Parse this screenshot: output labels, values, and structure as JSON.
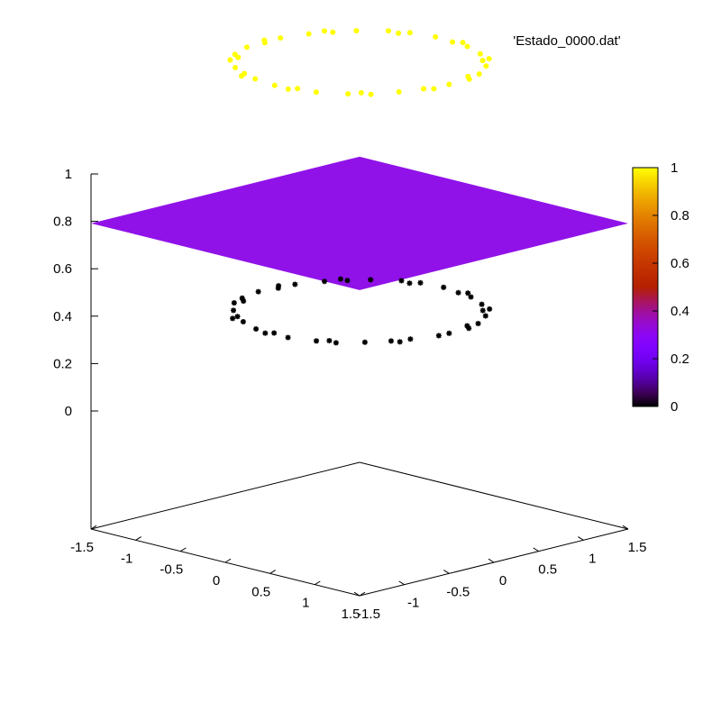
{
  "chart_data": {
    "type": "scatter",
    "subtype": "3d-splot",
    "title": "",
    "legend": {
      "position": "top-right",
      "entries": [
        {
          "label": "'Estado_0000.dat'",
          "color": "#FFFF00"
        }
      ]
    },
    "axes": {
      "x": {
        "range": [
          -1.5,
          1.5
        ],
        "ticks": [
          -1.5,
          -1,
          -0.5,
          0,
          0.5,
          1,
          1.5
        ],
        "tick_labels": [
          "-1.5",
          "-1",
          "-0.5",
          "0",
          "0.5",
          "1",
          "1.5"
        ]
      },
      "y": {
        "range": [
          -1.5,
          1.5
        ],
        "ticks": [
          -1.5,
          -1,
          -0.5,
          0,
          0.5,
          1,
          1.5
        ],
        "tick_labels": [
          "-1.5",
          "-1",
          "-0.5",
          "0",
          "0.5",
          "1",
          "1.5"
        ]
      },
      "z": {
        "ticks": [
          0,
          0.2,
          0.4,
          0.6,
          0.8,
          1
        ],
        "tick_labels": [
          "0",
          "0.2",
          "0.4",
          "0.6",
          "0.8",
          "1"
        ]
      }
    },
    "colorbox": {
      "palette": "gnuplot-default",
      "range": [
        0,
        1
      ],
      "ticks": [
        0,
        0.2,
        0.4,
        0.6,
        0.8,
        1
      ],
      "tick_labels": [
        "0",
        "0.2",
        "0.4",
        "0.6",
        "0.8",
        "1"
      ]
    },
    "grid": false,
    "series": [
      {
        "kind": "points-on-circle",
        "radius": 1,
        "z": 1,
        "count": 40,
        "color": "#FFFF00",
        "marker": "dot"
      },
      {
        "kind": "surface",
        "x_range": [
          -1.5,
          1.5
        ],
        "y_range": [
          -1.5,
          1.5
        ],
        "z": 0.32,
        "color": "#9012E8"
      },
      {
        "kind": "points-on-circle",
        "radius": 1,
        "z": -0.05,
        "count": 42,
        "color": "#000000",
        "marker": "star"
      }
    ]
  }
}
